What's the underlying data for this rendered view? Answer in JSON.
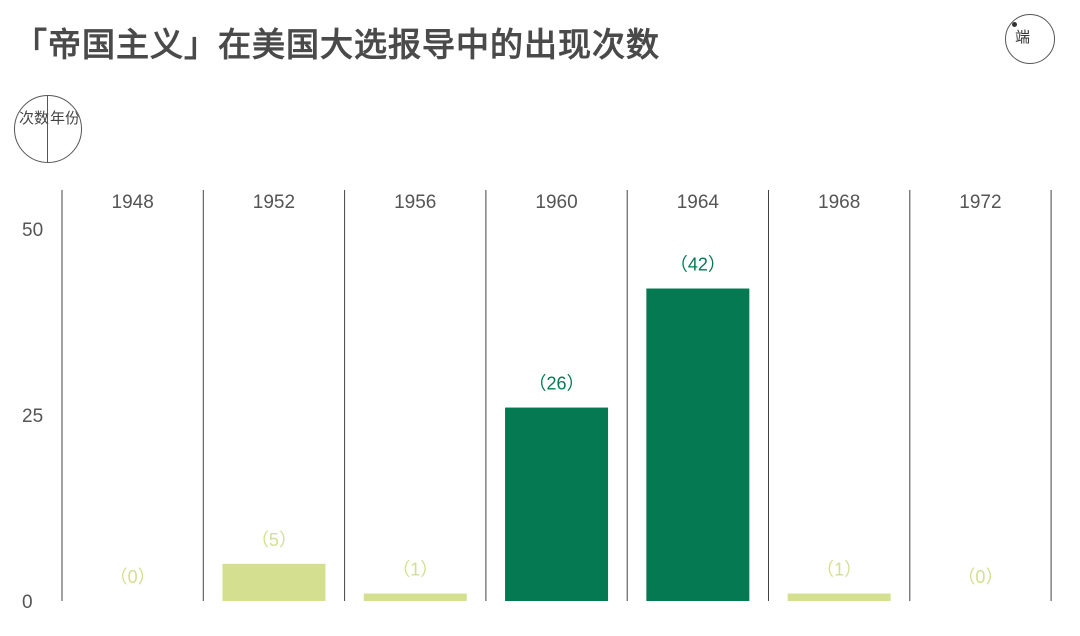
{
  "title": "「帝国主义」在美国大选报导中的出现次数",
  "logo_text": "端",
  "unit_key": {
    "left": "次数",
    "right": "年份"
  },
  "colors": {
    "high": "#057a52",
    "low": "#d4df8f",
    "grid": "#444444",
    "text": "#555555"
  },
  "chart_data": {
    "type": "bar",
    "categories": [
      "1948",
      "1952",
      "1956",
      "1960",
      "1964",
      "1968",
      "1972"
    ],
    "values": [
      0,
      5,
      1,
      26,
      42,
      1,
      0
    ],
    "labels": [
      "（0）",
      "（5）",
      "（1）",
      "（26）",
      "（42）",
      "（1）",
      "（0）"
    ],
    "highlight": [
      false,
      false,
      false,
      true,
      true,
      false,
      false
    ],
    "yticks": [
      0,
      25,
      50
    ],
    "ylim": [
      0,
      50
    ],
    "grid": true
  }
}
